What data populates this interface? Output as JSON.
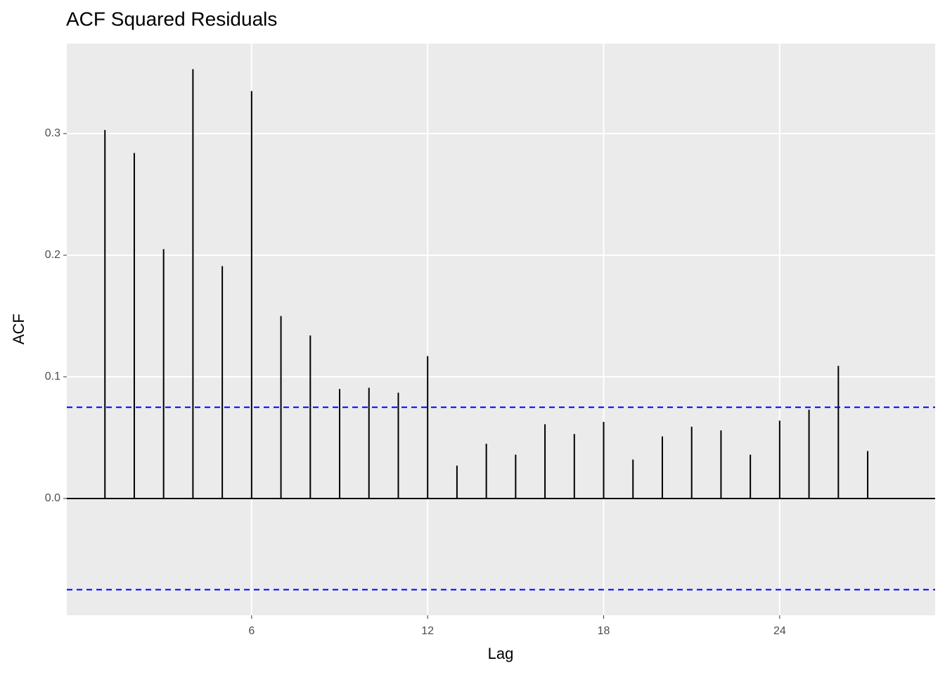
{
  "chart_data": {
    "type": "acf",
    "title": "ACF Squared Residuals",
    "x_label": "Lag",
    "y_label": "ACF",
    "x": [
      1,
      2,
      3,
      4,
      5,
      6,
      7,
      8,
      9,
      10,
      11,
      12,
      13,
      14,
      15,
      16,
      17,
      18,
      19,
      20,
      21,
      22,
      23,
      24,
      25,
      26,
      27
    ],
    "values": [
      0.303,
      0.284,
      0.205,
      0.353,
      0.191,
      0.335,
      0.15,
      0.134,
      0.09,
      0.091,
      0.087,
      0.117,
      0.027,
      0.045,
      0.036,
      0.061,
      0.053,
      0.063,
      0.032,
      0.051,
      0.059,
      0.056,
      0.036,
      0.064,
      0.073,
      0.109,
      0.039
    ],
    "color": "#000000",
    "conf_limits": [
      0.075,
      -0.075
    ],
    "conf_color": "#0000ff",
    "xlim": [
      -0.3,
      29.3
    ],
    "ylim": [
      -0.096,
      0.374
    ],
    "xticks": [
      6,
      12,
      18,
      24
    ],
    "yticks": [
      {
        "value": 0,
        "label": "0.0"
      },
      0.1,
      0.2,
      0.3
    ],
    "grid": true
  }
}
